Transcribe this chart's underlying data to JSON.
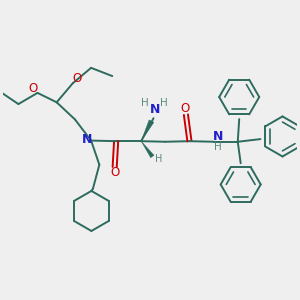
{
  "bg_color": "#efefef",
  "bond_color": "#2d6b5e",
  "N_color": "#2020cc",
  "O_color": "#cc0000",
  "H_color": "#5a8a80",
  "line_width": 1.4,
  "figsize": [
    3.0,
    3.0
  ],
  "dpi": 100,
  "xlim": [
    0,
    10
  ],
  "ylim": [
    0,
    10
  ]
}
